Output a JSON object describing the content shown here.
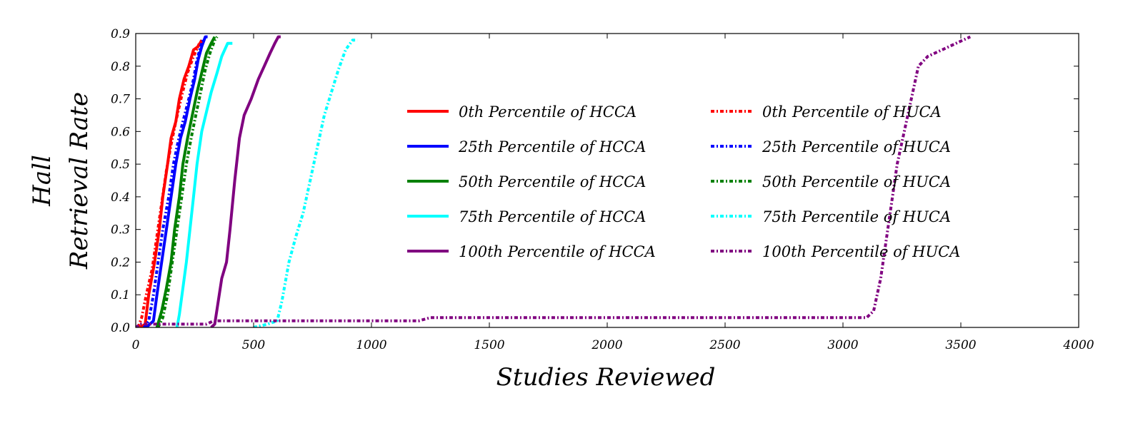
{
  "chart_data": {
    "type": "line",
    "title": "",
    "xlabel": "Studies Reviewed",
    "ylabel_lines": [
      "Hall",
      "Retrieval Rate"
    ],
    "xlim": [
      0,
      4000
    ],
    "ylim": [
      0,
      0.9
    ],
    "x_ticks": [
      0,
      500,
      1000,
      1500,
      2000,
      2500,
      3000,
      3500,
      4000
    ],
    "y_ticks": [
      0.0,
      0.1,
      0.2,
      0.3,
      0.4,
      0.5,
      0.6,
      0.7,
      0.8,
      0.9
    ],
    "x_tick_labels": [
      "0",
      "500",
      "1000",
      "1500",
      "2000",
      "2500",
      "3000",
      "3500",
      "4000"
    ],
    "y_tick_labels": [
      "0.0",
      "0.1",
      "0.2",
      "0.3",
      "0.4",
      "0.5",
      "0.6",
      "0.7",
      "0.8",
      "0.9"
    ],
    "grid": false,
    "legend_placement": "center",
    "series": [
      {
        "name": "0th Percentile of HCCA",
        "color": "#ff0000",
        "style": "solid",
        "points": [
          [
            20,
            0
          ],
          [
            40,
            0.01
          ],
          [
            55,
            0.1
          ],
          [
            80,
            0.2
          ],
          [
            100,
            0.3
          ],
          [
            115,
            0.4
          ],
          [
            135,
            0.5
          ],
          [
            150,
            0.58
          ],
          [
            170,
            0.63
          ],
          [
            185,
            0.7
          ],
          [
            205,
            0.76
          ],
          [
            225,
            0.8
          ],
          [
            245,
            0.85
          ],
          [
            265,
            0.86
          ],
          [
            280,
            0.88
          ]
        ]
      },
      {
        "name": "25th Percentile of HCCA",
        "color": "#0000ff",
        "style": "solid",
        "points": [
          [
            45,
            0
          ],
          [
            75,
            0.02
          ],
          [
            90,
            0.1
          ],
          [
            110,
            0.2
          ],
          [
            130,
            0.3
          ],
          [
            150,
            0.4
          ],
          [
            170,
            0.5
          ],
          [
            190,
            0.58
          ],
          [
            210,
            0.63
          ],
          [
            230,
            0.7
          ],
          [
            250,
            0.76
          ],
          [
            265,
            0.82
          ],
          [
            280,
            0.86
          ],
          [
            295,
            0.89
          ],
          [
            305,
            0.89
          ]
        ]
      },
      {
        "name": "50th Percentile of HCCA",
        "color": "#008000",
        "style": "solid",
        "points": [
          [
            90,
            0
          ],
          [
            110,
            0.05
          ],
          [
            130,
            0.12
          ],
          [
            150,
            0.2
          ],
          [
            165,
            0.3
          ],
          [
            185,
            0.4
          ],
          [
            200,
            0.5
          ],
          [
            220,
            0.58
          ],
          [
            240,
            0.65
          ],
          [
            260,
            0.72
          ],
          [
            280,
            0.78
          ],
          [
            300,
            0.84
          ],
          [
            320,
            0.87
          ],
          [
            335,
            0.89
          ]
        ]
      },
      {
        "name": "75th Percentile of HCCA",
        "color": "#00ffff",
        "style": "solid",
        "points": [
          [
            175,
            0
          ],
          [
            185,
            0.04
          ],
          [
            200,
            0.12
          ],
          [
            215,
            0.2
          ],
          [
            230,
            0.3
          ],
          [
            245,
            0.4
          ],
          [
            260,
            0.5
          ],
          [
            280,
            0.6
          ],
          [
            300,
            0.66
          ],
          [
            320,
            0.72
          ],
          [
            345,
            0.78
          ],
          [
            365,
            0.83
          ],
          [
            390,
            0.87
          ],
          [
            410,
            0.87
          ]
        ]
      },
      {
        "name": "100th Percentile of HCCA",
        "color": "#800080",
        "style": "solid",
        "points": [
          [
            320,
            0
          ],
          [
            335,
            0.01
          ],
          [
            350,
            0.08
          ],
          [
            365,
            0.15
          ],
          [
            385,
            0.2
          ],
          [
            400,
            0.3
          ],
          [
            420,
            0.45
          ],
          [
            440,
            0.58
          ],
          [
            460,
            0.65
          ],
          [
            490,
            0.7
          ],
          [
            520,
            0.76
          ],
          [
            545,
            0.8
          ],
          [
            570,
            0.84
          ],
          [
            590,
            0.87
          ],
          [
            605,
            0.89
          ],
          [
            615,
            0.89
          ]
        ]
      },
      {
        "name": "0th Percentile of HUCA",
        "color": "#ff0000",
        "style": "dashdot",
        "points": [
          [
            10,
            0
          ],
          [
            25,
            0.03
          ],
          [
            45,
            0.1
          ],
          [
            70,
            0.18
          ],
          [
            90,
            0.28
          ],
          [
            110,
            0.38
          ],
          [
            130,
            0.48
          ],
          [
            150,
            0.56
          ],
          [
            170,
            0.63
          ],
          [
            195,
            0.71
          ],
          [
            220,
            0.78
          ],
          [
            245,
            0.83
          ],
          [
            270,
            0.87
          ],
          [
            285,
            0.88
          ]
        ]
      },
      {
        "name": "25th Percentile of HUCA",
        "color": "#0000ff",
        "style": "dashdot",
        "points": [
          [
            35,
            0
          ],
          [
            55,
            0.02
          ],
          [
            75,
            0.1
          ],
          [
            95,
            0.2
          ],
          [
            115,
            0.3
          ],
          [
            140,
            0.4
          ],
          [
            160,
            0.5
          ],
          [
            180,
            0.57
          ],
          [
            200,
            0.63
          ],
          [
            225,
            0.7
          ],
          [
            245,
            0.76
          ],
          [
            260,
            0.82
          ],
          [
            275,
            0.86
          ],
          [
            285,
            0.88
          ]
        ]
      },
      {
        "name": "50th Percentile of HUCA",
        "color": "#008000",
        "style": "dashdot",
        "points": [
          [
            95,
            0
          ],
          [
            115,
            0.03
          ],
          [
            135,
            0.1
          ],
          [
            155,
            0.2
          ],
          [
            175,
            0.3
          ],
          [
            195,
            0.4
          ],
          [
            215,
            0.5
          ],
          [
            235,
            0.58
          ],
          [
            255,
            0.65
          ],
          [
            275,
            0.72
          ],
          [
            295,
            0.79
          ],
          [
            315,
            0.84
          ],
          [
            335,
            0.88
          ],
          [
            345,
            0.89
          ]
        ]
      },
      {
        "name": "75th Percentile of HUCA",
        "color": "#00ffff",
        "style": "dashdot",
        "points": [
          [
            500,
            0
          ],
          [
            560,
            0.01
          ],
          [
            600,
            0.02
          ],
          [
            620,
            0.08
          ],
          [
            650,
            0.2
          ],
          [
            680,
            0.28
          ],
          [
            710,
            0.35
          ],
          [
            740,
            0.45
          ],
          [
            770,
            0.55
          ],
          [
            800,
            0.65
          ],
          [
            830,
            0.72
          ],
          [
            860,
            0.79
          ],
          [
            890,
            0.85
          ],
          [
            920,
            0.88
          ],
          [
            940,
            0.88
          ]
        ]
      },
      {
        "name": "100th Percentile of HUCA",
        "color": "#800080",
        "style": "dashdot",
        "points": [
          [
            0,
            0
          ],
          [
            20,
            0.01
          ],
          [
            300,
            0.01
          ],
          [
            330,
            0.02
          ],
          [
            600,
            0.02
          ],
          [
            1200,
            0.02
          ],
          [
            1250,
            0.03
          ],
          [
            3100,
            0.03
          ],
          [
            3130,
            0.05
          ],
          [
            3160,
            0.15
          ],
          [
            3180,
            0.25
          ],
          [
            3200,
            0.35
          ],
          [
            3230,
            0.5
          ],
          [
            3260,
            0.6
          ],
          [
            3290,
            0.7
          ],
          [
            3320,
            0.8
          ],
          [
            3360,
            0.83
          ],
          [
            3420,
            0.85
          ],
          [
            3480,
            0.87
          ],
          [
            3540,
            0.89
          ]
        ]
      }
    ]
  }
}
